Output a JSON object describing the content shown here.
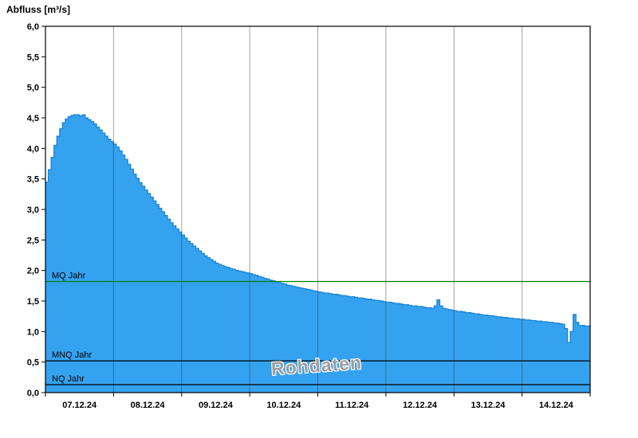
{
  "title": "Abfluss [m³/s]",
  "watermark": "Rohdaten",
  "chart_data": {
    "type": "area",
    "title": "Abfluss [m³/s]",
    "ylabel": "Abfluss [m³/s]",
    "ylim": [
      0,
      6
    ],
    "ytick_step": 0.5,
    "ytick_labels": [
      "0,0",
      "0,5",
      "1,0",
      "1,5",
      "2,0",
      "2,5",
      "3,0",
      "3,5",
      "4,0",
      "4,5",
      "5,0",
      "5,5",
      "6,0"
    ],
    "x_day_labels": [
      "07.12.24",
      "08.12.24",
      "09.12.24",
      "10.12.24",
      "11.12.24",
      "12.12.24",
      "13.12.24",
      "14.12.24"
    ],
    "grid": "vertical-daily",
    "legend": "none",
    "area_color": "#35a2f0",
    "line_color": "#1b84d6",
    "grid_color": "rgba(50,50,50,0.45)",
    "axis_color": "#000000",
    "reference_lines": [
      {
        "label": "MQ Jahr",
        "value": 1.82,
        "color": "#008000"
      },
      {
        "label": "MNQ Jahr",
        "value": 0.52,
        "color": "#000000"
      },
      {
        "label": "NQ Jahr",
        "value": 0.13,
        "color": "#000000"
      }
    ],
    "series": [
      {
        "name": "Abfluss Rohdaten",
        "unit": "m³/s",
        "step_hours": 1,
        "start_label": "07.12.24 00:00",
        "values": [
          3.45,
          3.65,
          3.85,
          4.05,
          4.2,
          4.32,
          4.42,
          4.48,
          4.52,
          4.54,
          4.55,
          4.55,
          4.53,
          4.55,
          4.5,
          4.47,
          4.44,
          4.4,
          4.35,
          4.3,
          4.25,
          4.2,
          4.15,
          4.11,
          4.07,
          4.02,
          3.96,
          3.89,
          3.82,
          3.74,
          3.66,
          3.58,
          3.51,
          3.44,
          3.38,
          3.32,
          3.26,
          3.2,
          3.14,
          3.08,
          3.02,
          2.96,
          2.9,
          2.84,
          2.78,
          2.73,
          2.68,
          2.63,
          2.58,
          2.53,
          2.48,
          2.44,
          2.4,
          2.36,
          2.32,
          2.28,
          2.24,
          2.21,
          2.18,
          2.15,
          2.12,
          2.1,
          2.08,
          2.06,
          2.05,
          2.03,
          2.02,
          2.0,
          1.99,
          1.98,
          1.97,
          1.96,
          1.95,
          1.93,
          1.92,
          1.9,
          1.89,
          1.87,
          1.86,
          1.84,
          1.83,
          1.81,
          1.8,
          1.79,
          1.78,
          1.76,
          1.75,
          1.74,
          1.73,
          1.72,
          1.71,
          1.7,
          1.69,
          1.68,
          1.67,
          1.66,
          1.65,
          1.64,
          1.63,
          1.63,
          1.62,
          1.61,
          1.61,
          1.6,
          1.59,
          1.59,
          1.58,
          1.57,
          1.57,
          1.56,
          1.55,
          1.55,
          1.54,
          1.53,
          1.53,
          1.52,
          1.51,
          1.51,
          1.5,
          1.49,
          1.48,
          1.48,
          1.47,
          1.46,
          1.46,
          1.45,
          1.44,
          1.44,
          1.43,
          1.42,
          1.42,
          1.41,
          1.41,
          1.4,
          1.39,
          1.39,
          1.38,
          1.42,
          1.52,
          1.42,
          1.38,
          1.37,
          1.36,
          1.35,
          1.34,
          1.33,
          1.33,
          1.32,
          1.31,
          1.31,
          1.3,
          1.29,
          1.29,
          1.28,
          1.27,
          1.27,
          1.26,
          1.26,
          1.25,
          1.24,
          1.24,
          1.23,
          1.23,
          1.22,
          1.22,
          1.21,
          1.21,
          1.2,
          1.2,
          1.19,
          1.19,
          1.18,
          1.18,
          1.17,
          1.17,
          1.16,
          1.16,
          1.15,
          1.15,
          1.14,
          1.14,
          1.13,
          1.12,
          1.05,
          0.82,
          1.0,
          1.28,
          1.15,
          1.1,
          1.1,
          1.09,
          1.09,
          1.08
        ]
      }
    ]
  }
}
